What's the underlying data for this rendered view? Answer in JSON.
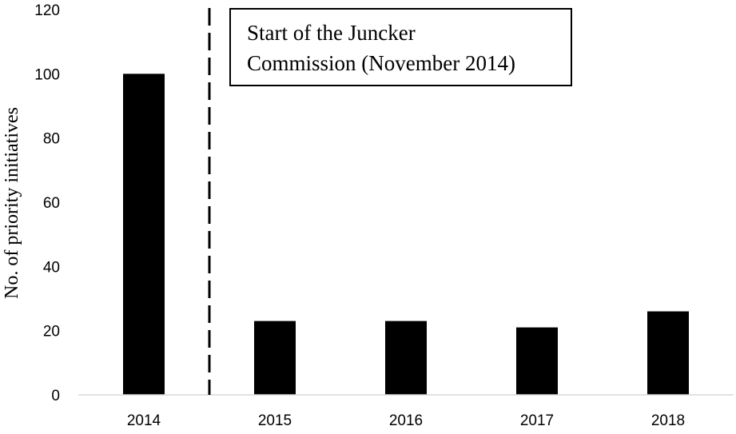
{
  "chart_data": {
    "type": "bar",
    "categories": [
      "2014",
      "2015",
      "2016",
      "2017",
      "2018"
    ],
    "values": [
      100,
      23,
      23,
      21,
      26
    ],
    "ylabel": "No. of priority initiatives",
    "xlabel": "",
    "ylim": [
      0,
      120
    ],
    "yticks": [
      "0",
      "20",
      "40",
      "60",
      "80",
      "100",
      "120"
    ],
    "grid": false,
    "bar_color": "#000000",
    "annotation": {
      "lines": [
        "Start of the Juncker",
        "Commission (November 2014)"
      ],
      "marker": "dashed vertical line between 2014 and 2015"
    }
  }
}
